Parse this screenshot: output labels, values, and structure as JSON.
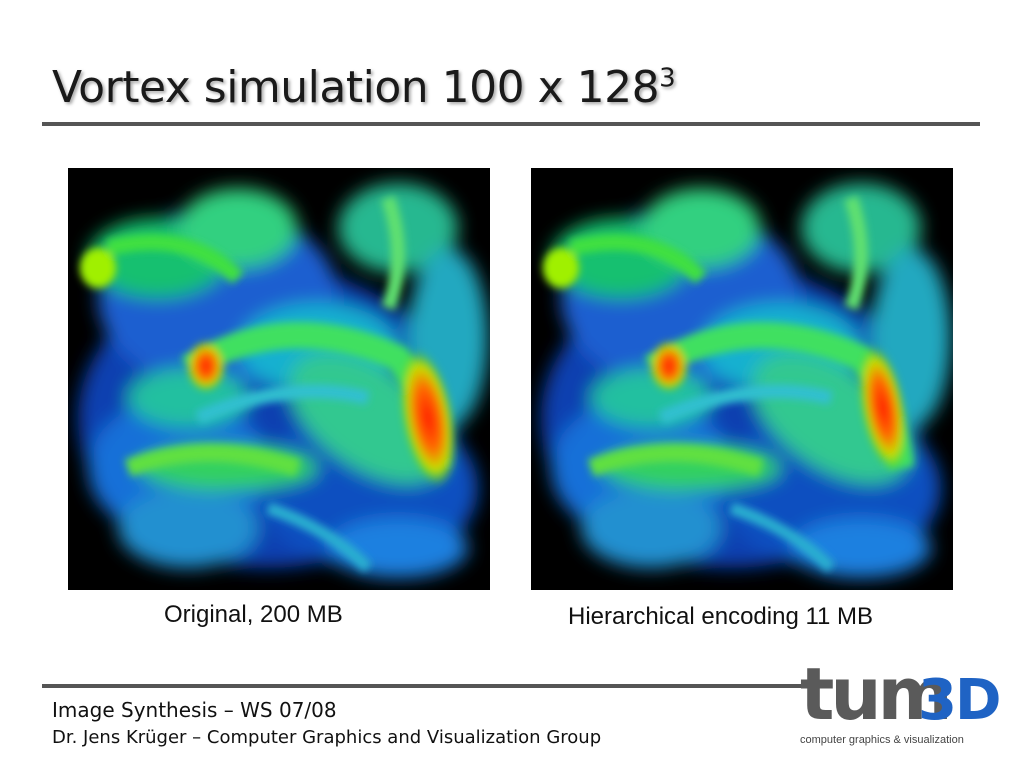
{
  "slide": {
    "title_main": "Vortex simulation 100 x 128",
    "title_exponent": "3"
  },
  "figures": [
    {
      "caption": "Original, 200 MB"
    },
    {
      "caption": "Hierarchical encoding 11 MB"
    }
  ],
  "footer": {
    "course": "Image Synthesis – WS 07/08",
    "author": "Dr. Jens Krüger – Computer Graphics and Visualization Group"
  },
  "logo": {
    "mark_left": "tum",
    "mark_right": "3D",
    "tagline": "computer graphics & visualization"
  },
  "colors": {
    "title_rule": "#555555",
    "logo_gray": "#5a5a5a",
    "logo_blue": "#1f63c4"
  }
}
